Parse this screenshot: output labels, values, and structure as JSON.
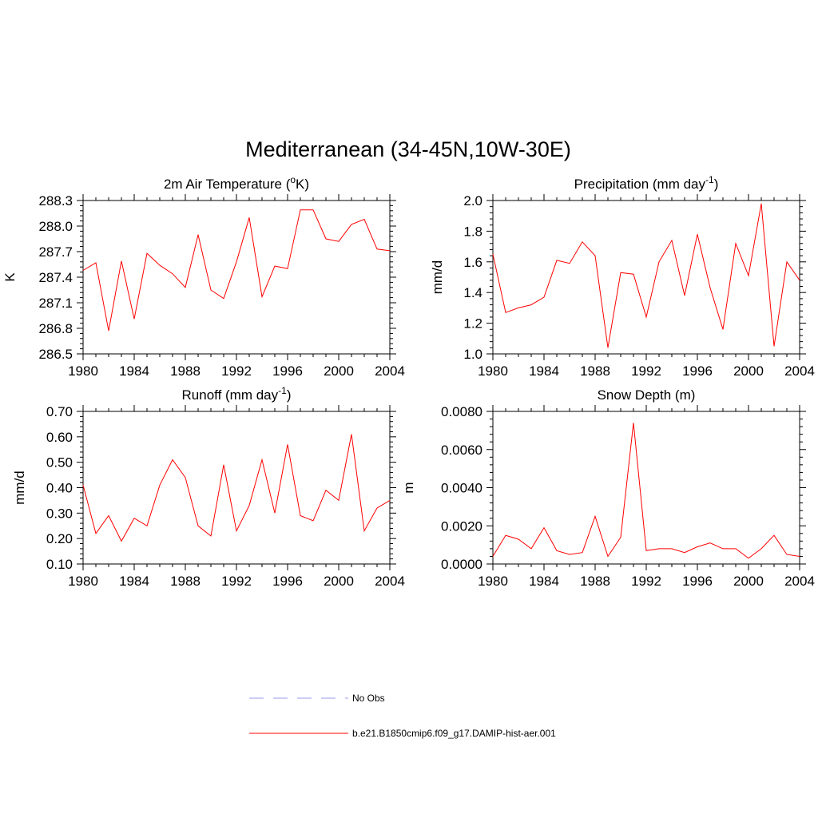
{
  "figure": {
    "title": "Mediterranean (34-45N,10W-30E)"
  },
  "legend": [
    {
      "label": "No Obs",
      "color": "#9999ee",
      "dash": "dashed"
    },
    {
      "label": "b.e21.B1850cmip6.f09_g17.DAMIP-hist-aer.001",
      "color": "#ff0000",
      "dash": "solid"
    }
  ],
  "chart_data": [
    {
      "type": "line",
      "title": "2m Air Temperature (",
      "title_sup": "o",
      "title_suffix": "K)",
      "ylabel": "K",
      "xlim": [
        1980,
        2004
      ],
      "ylim": [
        286.5,
        288.3
      ],
      "x_ticks": [
        "1980",
        "1984",
        "1988",
        "1992",
        "1996",
        "2000",
        "2004"
      ],
      "y_ticks": [
        "286.5",
        "286.8",
        "287.1",
        "287.4",
        "287.7",
        "288.0",
        "288.3"
      ],
      "series": [
        {
          "color": "#ff0000",
          "x": [
            1980,
            1981,
            1982,
            1983,
            1984,
            1985,
            1986,
            1987,
            1988,
            1989,
            1990,
            1991,
            1992,
            1993,
            1994,
            1995,
            1996,
            1997,
            1998,
            1999,
            2000,
            2001,
            2002,
            2003,
            2004
          ],
          "values": [
            287.48,
            287.57,
            286.77,
            287.59,
            286.91,
            287.68,
            287.54,
            287.44,
            287.28,
            287.9,
            287.25,
            287.15,
            287.58,
            288.1,
            287.17,
            287.53,
            287.5,
            288.19,
            288.19,
            287.85,
            287.82,
            288.02,
            288.08,
            287.73,
            287.71
          ]
        }
      ]
    },
    {
      "type": "line",
      "title": "Precipitation (mm day",
      "title_sup": "-1",
      "title_suffix": ")",
      "ylabel": "mm/d",
      "xlim": [
        1980,
        2004
      ],
      "ylim": [
        1.0,
        2.0
      ],
      "x_ticks": [
        "1980",
        "1984",
        "1988",
        "1992",
        "1996",
        "2000",
        "2004"
      ],
      "y_ticks": [
        "1.0",
        "1.2",
        "1.4",
        "1.6",
        "1.8",
        "2.0"
      ],
      "series": [
        {
          "color": "#ff0000",
          "x": [
            1980,
            1981,
            1982,
            1983,
            1984,
            1985,
            1986,
            1987,
            1988,
            1989,
            1990,
            1991,
            1992,
            1993,
            1994,
            1995,
            1996,
            1997,
            1998,
            1999,
            2000,
            2001,
            2002,
            2003,
            2004
          ],
          "values": [
            1.65,
            1.27,
            1.3,
            1.32,
            1.37,
            1.61,
            1.59,
            1.73,
            1.64,
            1.04,
            1.53,
            1.52,
            1.24,
            1.6,
            1.74,
            1.38,
            1.78,
            1.43,
            1.16,
            1.72,
            1.51,
            1.98,
            1.05,
            1.6,
            1.48
          ]
        }
      ]
    },
    {
      "type": "line",
      "title": "Runoff (mm day",
      "title_sup": "-1",
      "title_suffix": ")",
      "ylabel": "mm/d",
      "xlim": [
        1980,
        2004
      ],
      "ylim": [
        0.1,
        0.7
      ],
      "x_ticks": [
        "1980",
        "1984",
        "1988",
        "1992",
        "1996",
        "2000",
        "2004"
      ],
      "y_ticks": [
        "0.10",
        "0.20",
        "0.30",
        "0.40",
        "0.50",
        "0.60",
        "0.70"
      ],
      "series": [
        {
          "color": "#ff0000",
          "x": [
            1980,
            1981,
            1982,
            1983,
            1984,
            1985,
            1986,
            1987,
            1988,
            1989,
            1990,
            1991,
            1992,
            1993,
            1994,
            1995,
            1996,
            1997,
            1998,
            1999,
            2000,
            2001,
            2002,
            2003,
            2004
          ],
          "values": [
            0.41,
            0.22,
            0.29,
            0.19,
            0.28,
            0.25,
            0.41,
            0.51,
            0.44,
            0.25,
            0.21,
            0.49,
            0.23,
            0.33,
            0.51,
            0.3,
            0.57,
            0.29,
            0.27,
            0.39,
            0.35,
            0.61,
            0.23,
            0.32,
            0.35
          ]
        }
      ]
    },
    {
      "type": "line",
      "title": "Snow Depth (m)",
      "title_sup": "",
      "title_suffix": "",
      "ylabel": "m",
      "xlim": [
        1980,
        2004
      ],
      "ylim": [
        0.0,
        0.008
      ],
      "x_ticks": [
        "1980",
        "1984",
        "1988",
        "1992",
        "1996",
        "2000",
        "2004"
      ],
      "y_ticks": [
        "0.0000",
        "0.0020",
        "0.0040",
        "0.0060",
        "0.0080"
      ],
      "series": [
        {
          "color": "#ff0000",
          "x": [
            1980,
            1981,
            1982,
            1983,
            1984,
            1985,
            1986,
            1987,
            1988,
            1989,
            1990,
            1991,
            1992,
            1993,
            1994,
            1995,
            1996,
            1997,
            1998,
            1999,
            2000,
            2001,
            2002,
            2003,
            2004
          ],
          "values": [
            0.0004,
            0.0015,
            0.0013,
            0.0008,
            0.0019,
            0.0007,
            0.0005,
            0.0006,
            0.0025,
            0.0004,
            0.0014,
            0.0074,
            0.0007,
            0.0008,
            0.0008,
            0.0006,
            0.0009,
            0.0011,
            0.0008,
            0.0008,
            0.0003,
            0.0008,
            0.0015,
            0.0005,
            0.0004
          ]
        }
      ]
    }
  ]
}
